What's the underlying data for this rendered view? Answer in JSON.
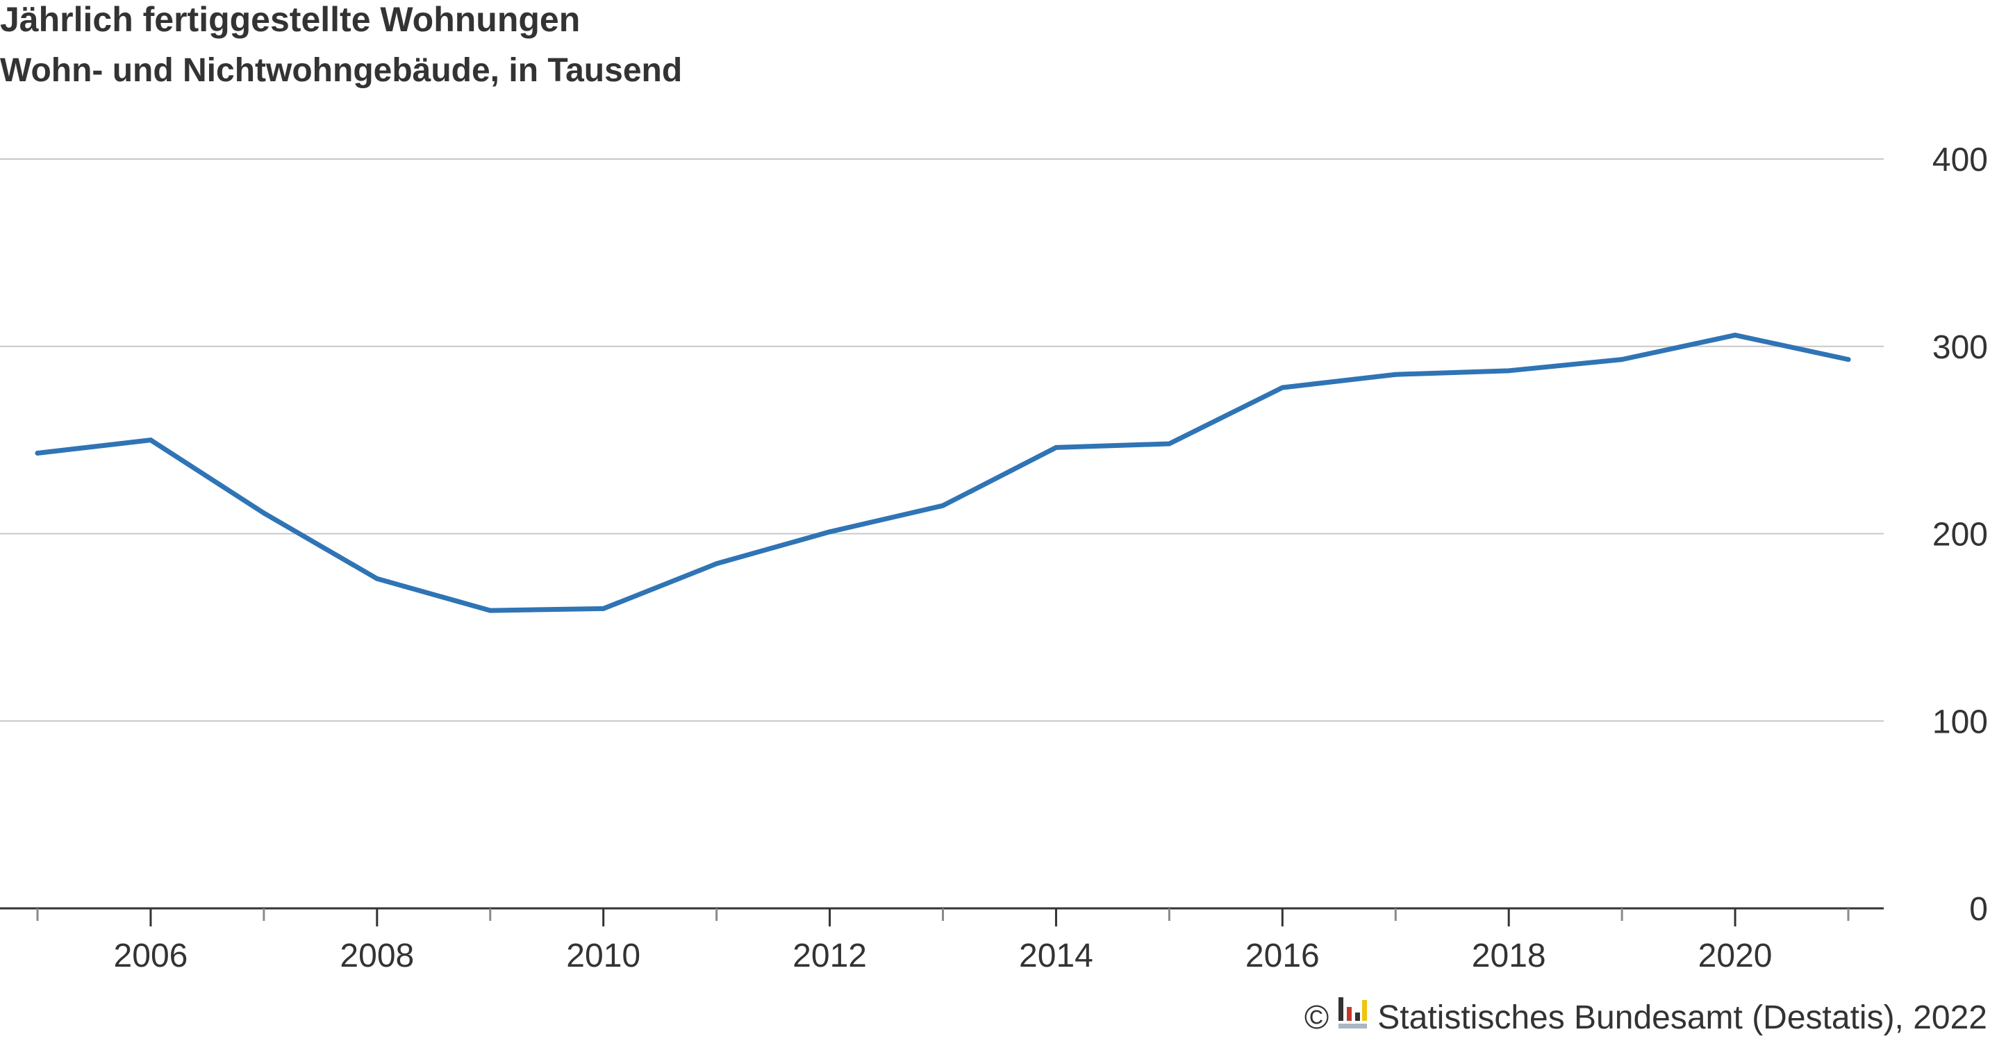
{
  "chart_data": {
    "type": "line",
    "title": "Jährlich fertiggestellte Wohnungen",
    "subtitle": "Wohn- und Nichtwohngebäude, in Tausend",
    "xlabel": "",
    "ylabel": "",
    "x": [
      2005,
      2006,
      2007,
      2008,
      2009,
      2010,
      2011,
      2012,
      2013,
      2014,
      2015,
      2016,
      2017,
      2018,
      2019,
      2020,
      2021
    ],
    "series": [
      {
        "values": [
          243,
          250,
          211,
          176,
          159,
          160,
          184,
          201,
          215,
          246,
          248,
          278,
          285,
          287,
          293,
          306,
          293
        ]
      }
    ],
    "xlim": [
      2005,
      2021
    ],
    "ylim": [
      0,
      400
    ],
    "x_ticks": [
      "2006",
      "2008",
      "2010",
      "2012",
      "2014",
      "2016",
      "2018",
      "2020"
    ],
    "y_ticks": [
      "0",
      "100",
      "200",
      "300",
      "400"
    ],
    "y_axis_side": "right",
    "grid": true,
    "line_color": "#2f74b5",
    "grid_color": "#c8c8c8",
    "axis_color": "#333333"
  },
  "source": {
    "copyright_symbol": "©",
    "text": "Statistisches Bundesamt (Destatis), 2022",
    "logo": "destatis-logo-icon"
  }
}
